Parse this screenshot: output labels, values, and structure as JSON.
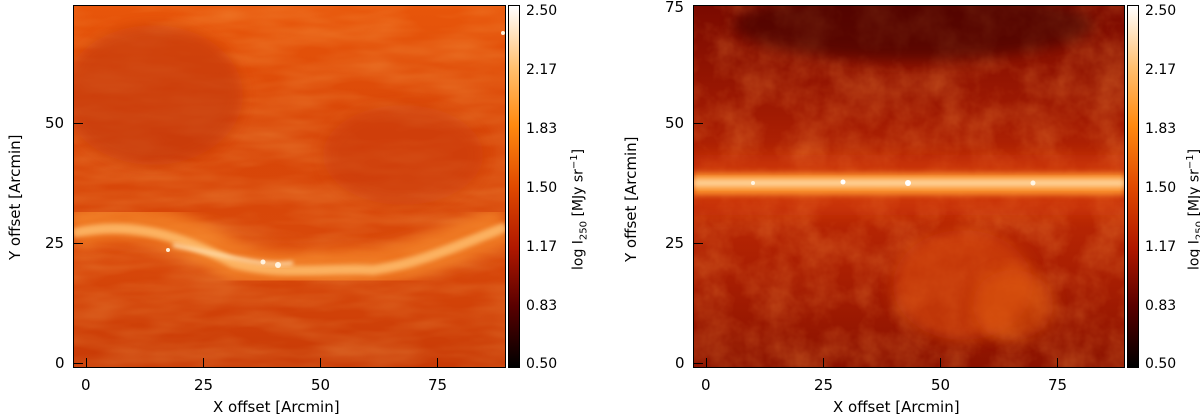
{
  "panels": [
    {
      "x_title": "X offset [Arcmin]",
      "y_title": "Y offset [Arcmin]",
      "x_ticks": [
        "0",
        "25",
        "50",
        "75"
      ],
      "y_ticks": [
        "0",
        "25",
        "50"
      ],
      "colorbar_ticks": [
        "2.50",
        "2.17",
        "1.83",
        "1.50",
        "1.17",
        "0.83",
        "0.50"
      ],
      "colorbar_title_main": "log I",
      "colorbar_title_sub": "250",
      "colorbar_title_unit": " [MJy sr",
      "colorbar_title_sup": "−1",
      "colorbar_title_end": "]"
    },
    {
      "x_title": "X offset [Arcmin]",
      "y_title": "Y offset [Arcmin]",
      "x_ticks": [
        "0",
        "25",
        "50",
        "75"
      ],
      "y_ticks": [
        "0",
        "25",
        "50",
        "75"
      ],
      "colorbar_ticks": [
        "2.50",
        "2.17",
        "1.83",
        "1.50",
        "1.17",
        "0.83",
        "0.50"
      ],
      "colorbar_title_main": "log I",
      "colorbar_title_sub": "250",
      "colorbar_title_unit": " [MJy sr",
      "colorbar_title_sup": "−1",
      "colorbar_title_end": "]"
    }
  ],
  "colormap": {
    "name": "red-temperature",
    "stops": [
      "#000000",
      "#5a0000",
      "#b01800",
      "#e04a00",
      "#ff8a10",
      "#ffc070",
      "#ffffff"
    ]
  }
}
